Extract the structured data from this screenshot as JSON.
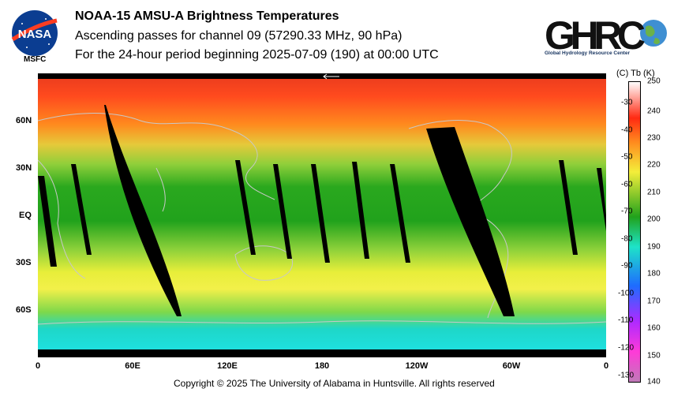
{
  "header": {
    "title": "NOAA-15 AMSU-A Brightness Temperatures",
    "subtitle1": "Ascending passes for channel 09 (57290.33 MHz, 90 hPa)",
    "subtitle2": "For the 24-hour period beginning 2025-07-09 (190) at 00:00 UTC"
  },
  "logos": {
    "nasa_text": "NASA",
    "msfc_text": "MSFC",
    "ghrc_text": "GHRC",
    "ghrc_caption": "Global Hydrology Resource Center"
  },
  "footer": {
    "copyright": "Copyright © 2025 The University of Alabama in Huntsville.  All rights reserved"
  },
  "colors": {
    "red": "#ff3a1e",
    "orange": "#ff8a1e",
    "yellow": "#e6ee3a",
    "green": "#21a21c",
    "cyan": "#1ee3e8",
    "missing": "#000000",
    "coastline": "#c8c8c8"
  },
  "chart_data": {
    "type": "heatmap",
    "x_tick_labels": [
      "0",
      "60E",
      "120E",
      "180",
      "120W",
      "60W",
      "0"
    ],
    "y_tick_labels": [
      "60N",
      "30N",
      "EQ",
      "30S",
      "60S"
    ],
    "xlim": [
      0,
      360
    ],
    "ylim": [
      -90,
      90
    ],
    "colorbar": {
      "header": "(C)  Tb  (K)",
      "kelvin_ticks": [
        250,
        240,
        230,
        220,
        210,
        200,
        190,
        180,
        170,
        160,
        150,
        140
      ],
      "celsius_ticks": [
        -30,
        -40,
        -50,
        -60,
        -70,
        -80,
        -90,
        -100,
        -110,
        -120,
        -130
      ],
      "range_k": [
        140,
        250
      ]
    },
    "latitude_profile_k": [
      {
        "lat": 90,
        "tb": 236
      },
      {
        "lat": 75,
        "tb": 233
      },
      {
        "lat": 60,
        "tb": 226
      },
      {
        "lat": 45,
        "tb": 218
      },
      {
        "lat": 30,
        "tb": 210
      },
      {
        "lat": 15,
        "tb": 205
      },
      {
        "lat": 0,
        "tb": 204
      },
      {
        "lat": -15,
        "tb": 207
      },
      {
        "lat": -30,
        "tb": 214
      },
      {
        "lat": -45,
        "tb": 216
      },
      {
        "lat": -60,
        "tb": 205
      },
      {
        "lat": -75,
        "tb": 190
      },
      {
        "lat": -90,
        "tb": 188
      }
    ]
  }
}
